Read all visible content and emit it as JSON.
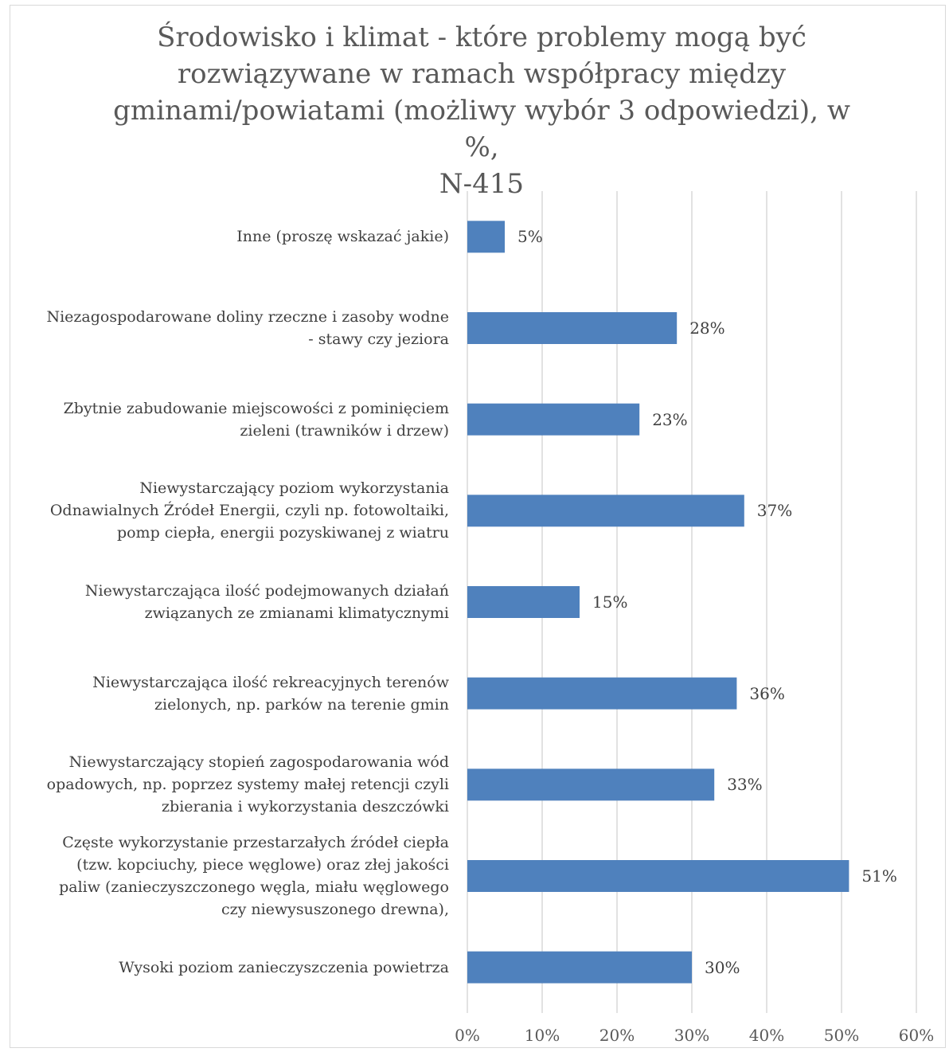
{
  "chart_data": {
    "type": "bar",
    "orientation": "horizontal",
    "title": "Środowisko i klimat - które problemy mogą być rozwiązywane w ramach współpracy między gminami/powiatami (możliwy wybór 3 odpowiedzi), w %, N-415",
    "title_lines": [
      "Środowisko i klimat - które problemy mogą być",
      "rozwiązywane w ramach współpracy między",
      "gminami/powiatami (możliwy wybór 3 odpowiedzi), w %,",
      "N-415"
    ],
    "categories": [
      "Inne (proszę wskazać jakie)",
      "Niezagospodarowane doliny rzeczne i zasoby wodne - stawy czy jeziora",
      "Zbytnie zabudowanie miejscowości z pominięciem zieleni (trawników i drzew)",
      "Niewystarczający poziom wykorzystania Odnawialnych Źródeł Energii, czyli np. fotowoltaiki, pomp ciepła, energii pozyskiwanej z wiatru",
      "Niewystarczająca ilość podejmowanych działań związanych ze zmianami klimatycznymi",
      "Niewystarczająca ilość rekreacyjnych terenów zielonych, np. parków na terenie gmin",
      "Niewystarczający stopień zagospodarowania wód opadowych, np. poprzez systemy małej retencji czyli zbierania i wykorzystania deszczówki",
      "Częste wykorzystanie przestarzałych źródeł ciepła (tzw. kopciuchy, piece węglowe) oraz złej jakości paliw (zanieczyszczonego węgla, miału węglowego czy niewysuszonego drewna),",
      "Wysoki poziom zanieczyszczenia powietrza"
    ],
    "category_lines": [
      [
        "Inne (proszę wskazać jakie)"
      ],
      [
        "Niezagospodarowane doliny rzeczne i zasoby wodne",
        "- stawy czy jeziora"
      ],
      [
        "Zbytnie zabudowanie miejscowości z pominięciem",
        "zieleni (trawników i drzew)"
      ],
      [
        "Niewystarczający poziom wykorzystania",
        "Odnawialnych Źródeł Energii, czyli np. fotowoltaiki,",
        "pomp ciepła, energii pozyskiwanej z wiatru"
      ],
      [
        "Niewystarczająca ilość podejmowanych działań",
        "związanych ze zmianami klimatycznymi"
      ],
      [
        "Niewystarczająca ilość rekreacyjnych terenów",
        "zielonych, np. parków na terenie gmin"
      ],
      [
        "Niewystarczający stopień zagospodarowania wód",
        "opadowych, np. poprzez systemy małej retencji czyli",
        "zbierania i wykorzystania deszczówki"
      ],
      [
        "Częste wykorzystanie przestarzałych źródeł ciepła",
        "(tzw. kopciuchy, piece węglowe) oraz złej jakości",
        "paliw (zanieczyszczonego węgla, miału węglowego",
        "czy niewysuszonego drewna),"
      ],
      [
        "Wysoki poziom zanieczyszczenia powietrza"
      ]
    ],
    "values": [
      5,
      28,
      23,
      37,
      15,
      36,
      33,
      51,
      30
    ],
    "value_labels": [
      "5%",
      "28%",
      "23%",
      "37%",
      "15%",
      "36%",
      "33%",
      "51%",
      "30%"
    ],
    "xlim": [
      0,
      60
    ],
    "x_ticks": [
      0,
      10,
      20,
      30,
      40,
      50,
      60
    ],
    "x_tick_labels": [
      "0%",
      "10%",
      "20%",
      "30%",
      "40%",
      "50%",
      "60%"
    ],
    "grid": true,
    "legend": "none",
    "bar_color": "#4f81bd",
    "gridline_color": "#d9d9d9"
  }
}
